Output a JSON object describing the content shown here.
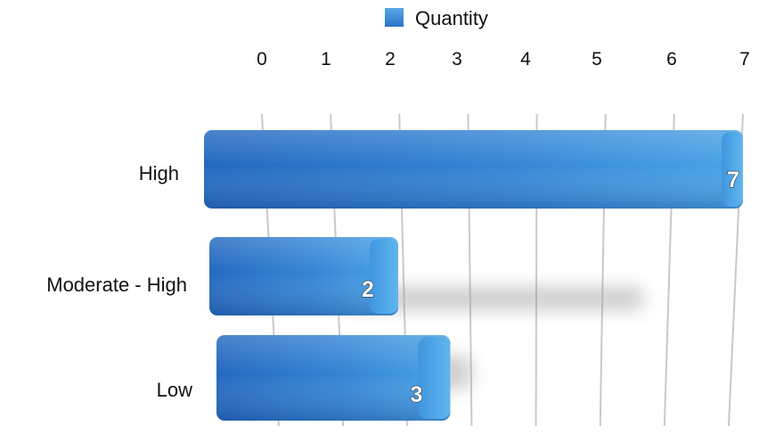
{
  "chart_data": {
    "type": "bar",
    "orientation": "horizontal",
    "categories": [
      "High",
      "Moderate - High",
      "Low"
    ],
    "series": [
      {
        "name": "Quantity",
        "values": [
          7,
          2,
          3
        ],
        "color": "#3a8ad6"
      }
    ],
    "xlim": [
      0,
      7
    ],
    "x_ticks": [
      "0",
      "1",
      "2",
      "3",
      "4",
      "5",
      "6",
      "7"
    ],
    "grid": true,
    "legend_position": "top-center",
    "show_data_labels": true
  }
}
